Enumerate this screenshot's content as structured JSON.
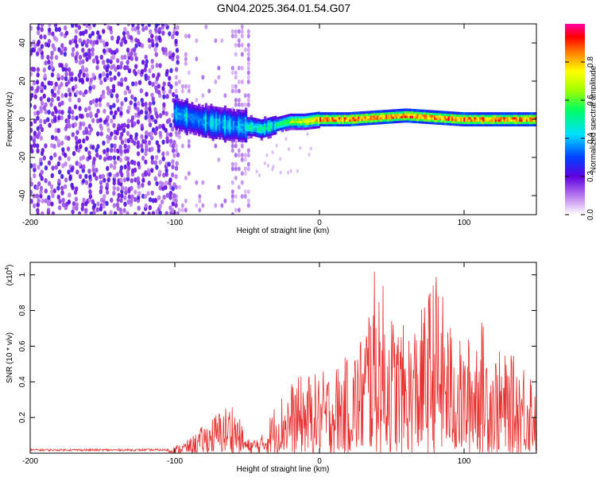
{
  "title": "GN04.2025.364.01.54.G07",
  "chart_data": [
    {
      "type": "heatmap",
      "xlabel": "Height of straight line (km)",
      "ylabel": "Frequency (Hz)",
      "xlim": [
        -200,
        150
      ],
      "ylim": [
        -50,
        50
      ],
      "xticks": [
        -200,
        -100,
        0,
        100
      ],
      "yticks": [
        -40,
        -20,
        0,
        20,
        40
      ],
      "colorbar": {
        "label": "Normalized spectral amplitude",
        "range": [
          0,
          1
        ],
        "ticks": [
          "0.0",
          "0.2",
          "0.4",
          "0.6",
          "0.8"
        ]
      },
      "ridge": [
        {
          "x": -100,
          "y": 3
        },
        {
          "x": -80,
          "y": -1
        },
        {
          "x": -60,
          "y": -3
        },
        {
          "x": -45,
          "y": -4
        },
        {
          "x": -40,
          "y": -5
        },
        {
          "x": -30,
          "y": -3
        },
        {
          "x": -20,
          "y": -1
        },
        {
          "x": -10,
          "y": -1
        },
        {
          "x": 0,
          "y": 0
        },
        {
          "x": 20,
          "y": 0
        },
        {
          "x": 40,
          "y": 1
        },
        {
          "x": 60,
          "y": 2
        },
        {
          "x": 80,
          "y": 1
        },
        {
          "x": 100,
          "y": 0
        },
        {
          "x": 120,
          "y": 0
        },
        {
          "x": 150,
          "y": 0
        }
      ]
    },
    {
      "type": "line",
      "xlabel": "Height of straight line (km)",
      "ylabel": "SNR (10 * v/v)",
      "exponent": "4",
      "xlim": [
        -200,
        150
      ],
      "ylim": [
        0,
        1.07
      ],
      "xticks": [
        -200,
        -100,
        0,
        100
      ],
      "yticks": [
        0.2,
        0.4,
        0.6,
        0.8,
        1.0
      ],
      "color": "#e83030",
      "envelope": [
        {
          "x": -200,
          "y": 0.02
        },
        {
          "x": -110,
          "y": 0.02
        },
        {
          "x": -100,
          "y": 0.04
        },
        {
          "x": -90,
          "y": 0.08
        },
        {
          "x": -80,
          "y": 0.16
        },
        {
          "x": -70,
          "y": 0.24
        },
        {
          "x": -60,
          "y": 0.3
        },
        {
          "x": -50,
          "y": 0.08
        },
        {
          "x": -40,
          "y": 0.1
        },
        {
          "x": -30,
          "y": 0.3
        },
        {
          "x": -20,
          "y": 0.4
        },
        {
          "x": -10,
          "y": 0.45
        },
        {
          "x": 0,
          "y": 0.45
        },
        {
          "x": 10,
          "y": 0.5
        },
        {
          "x": 20,
          "y": 0.55
        },
        {
          "x": 30,
          "y": 0.7
        },
        {
          "x": 35,
          "y": 0.97
        },
        {
          "x": 40,
          "y": 1.06
        },
        {
          "x": 50,
          "y": 0.8
        },
        {
          "x": 60,
          "y": 0.7
        },
        {
          "x": 70,
          "y": 0.8
        },
        {
          "x": 80,
          "y": 1.05
        },
        {
          "x": 90,
          "y": 0.75
        },
        {
          "x": 100,
          "y": 0.6
        },
        {
          "x": 110,
          "y": 0.8
        },
        {
          "x": 120,
          "y": 0.6
        },
        {
          "x": 130,
          "y": 0.55
        },
        {
          "x": 140,
          "y": 0.55
        },
        {
          "x": 150,
          "y": 0.5
        }
      ]
    }
  ]
}
